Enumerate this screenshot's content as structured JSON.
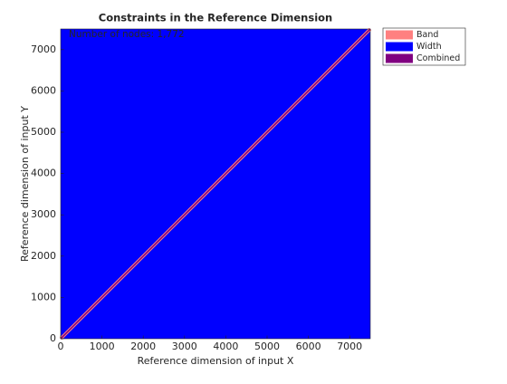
{
  "chart_data": {
    "type": "region",
    "title": "Constraints in the Reference Dimension",
    "x_label": "Reference dimension of input X",
    "y_label": "Reference dimension of input Y",
    "annotation": "Number of nodes: 1,772",
    "xlim": [
      0,
      7500
    ],
    "ylim": [
      0,
      7500
    ],
    "xticks": [
      0,
      1000,
      2000,
      3000,
      4000,
      5000,
      6000,
      7000
    ],
    "yticks": [
      0,
      1000,
      2000,
      3000,
      4000,
      5000,
      6000,
      7000
    ],
    "legend": "outside-northeast",
    "series": [
      {
        "name": "Width",
        "color": "#0000ff",
        "x": [
          0,
          7500,
          7500,
          0
        ],
        "y": [
          0,
          0,
          7500,
          7500
        ]
      },
      {
        "name": "Band",
        "color": "#ff8080",
        "x": [
          0,
          7500
        ],
        "y": [
          0,
          7500
        ]
      },
      {
        "name": "Combined",
        "color": "#800080",
        "x": [
          0,
          7500
        ],
        "y": [
          0,
          7500
        ]
      }
    ],
    "legend_order": [
      1,
      0,
      2
    ]
  }
}
